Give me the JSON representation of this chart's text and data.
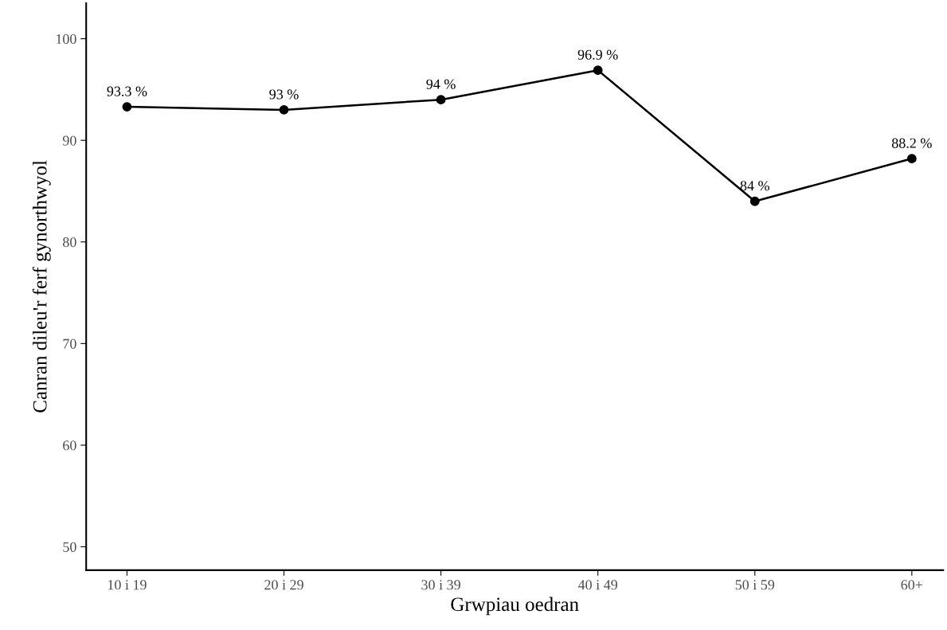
{
  "chart_data": {
    "type": "line",
    "xlabel": "Grwpiau oedran",
    "ylabel": "Canran dileu'r ferf gynorthwyol",
    "categories": [
      "10 i 19",
      "20 i 29",
      "30 i 39",
      "40 i 49",
      "50 i 59",
      "60+"
    ],
    "series": [
      {
        "color": "#000000",
        "values": [
          93.3,
          93,
          94,
          96.9,
          84,
          88.2
        ],
        "value_labels": [
          "93.3 %",
          "93 %",
          "94 %",
          "96.9 %",
          "84 %",
          "88.2 %"
        ]
      }
    ],
    "ylim": [
      47.7,
      103.5
    ],
    "yticks": [
      50,
      60,
      70,
      80,
      90,
      100
    ],
    "marker": "circle",
    "line_style": "solid",
    "grid": false,
    "legend": false
  }
}
